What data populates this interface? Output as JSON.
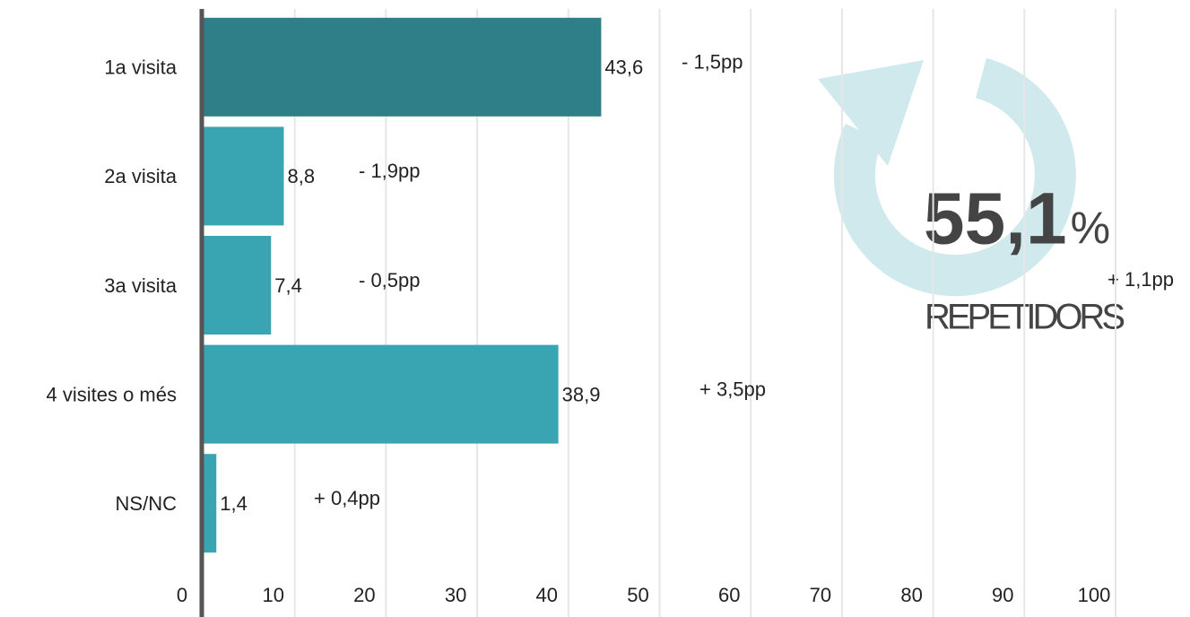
{
  "chart_data": {
    "type": "bar",
    "orientation": "horizontal",
    "categories": [
      "1a visita",
      "2a visita",
      "3a visita",
      "4 visites o més",
      "NS/NC"
    ],
    "values": [
      43.6,
      8.8,
      7.4,
      38.9,
      1.4
    ],
    "value_labels": [
      "43,6",
      "8,8",
      "7,4",
      "38,9",
      "1,4"
    ],
    "colors": [
      "#2e7f87",
      "#3aa5b2",
      "#3aa5b2",
      "#3aa5b2",
      "#3aa5b2"
    ],
    "change_labels": [
      "- 1,5pp",
      "- 1,9pp",
      "- 0,5pp",
      "+ 3,5pp",
      "+ 0,4pp"
    ],
    "change_colors": [
      "#e8141c",
      "#e8141c",
      "#e8141c",
      "#2db82d",
      "#2db82d"
    ],
    "xlim": [
      0,
      100
    ],
    "xticks": [
      0,
      10,
      20,
      30,
      40,
      50,
      60,
      70,
      80,
      90,
      100
    ],
    "grid": true,
    "callout": {
      "value": "55,1",
      "unit": "%",
      "label": "REPETIDORS",
      "change": "+ 1,1pp",
      "change_color": "#2db82d"
    }
  }
}
